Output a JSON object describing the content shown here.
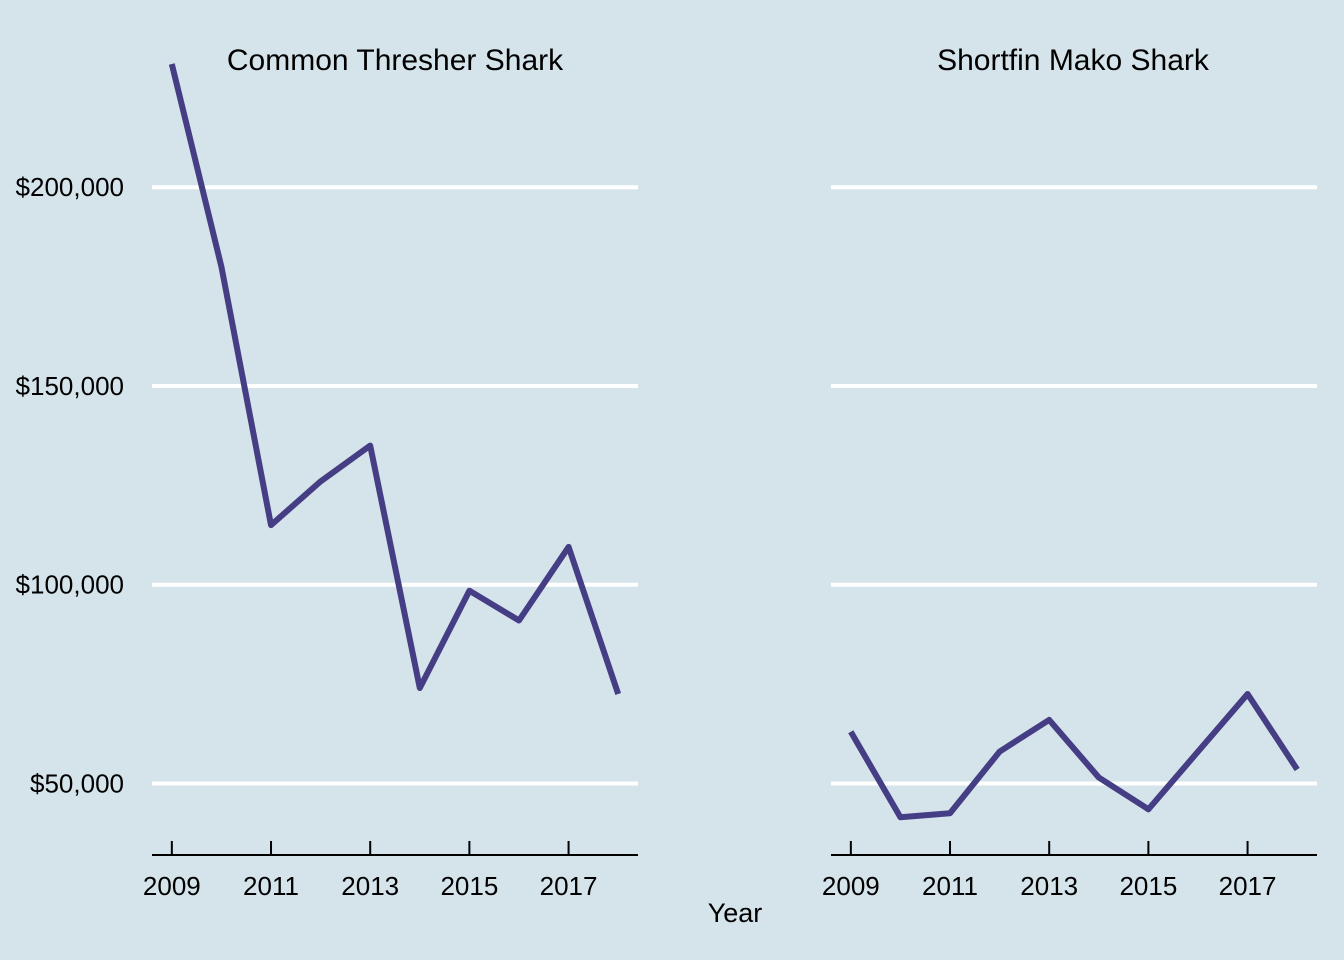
{
  "colors": {
    "background": "#d5e4eb",
    "line": "#463e84",
    "grid": "#ffffff",
    "axis": "#000000"
  },
  "chart_data": {
    "type": "line",
    "xlabel": "Year",
    "ylabel": "",
    "grid": "horizontal major gridlines",
    "legend": "none",
    "y_ticks": [
      50000,
      100000,
      150000,
      200000
    ],
    "y_tick_labels": [
      "$50,000",
      "$100,000",
      "$150,000",
      "$200,000"
    ],
    "ylim": [
      32000,
      232000
    ],
    "xlim": [
      2008.6,
      2018.4
    ],
    "x_ticks": [
      2009,
      2011,
      2013,
      2015,
      2017
    ],
    "x_tick_labels": [
      "2009",
      "2011",
      "2013",
      "2015",
      "2017"
    ],
    "panels": [
      {
        "title": "Common Thresher Shark",
        "x": [
          2009,
          2010,
          2011,
          2012,
          2013,
          2014,
          2015,
          2016,
          2017,
          2018
        ],
        "values": [
          231000,
          180000,
          115000,
          126000,
          135000,
          74000,
          98500,
          91000,
          109500,
          72500
        ]
      },
      {
        "title": "Shortfin Mako Shark",
        "x": [
          2009,
          2010,
          2011,
          2012,
          2013,
          2014,
          2015,
          2016,
          2017,
          2018
        ],
        "values": [
          63000,
          41500,
          42500,
          58000,
          66000,
          51500,
          43500,
          58000,
          72500,
          53500
        ]
      }
    ]
  }
}
